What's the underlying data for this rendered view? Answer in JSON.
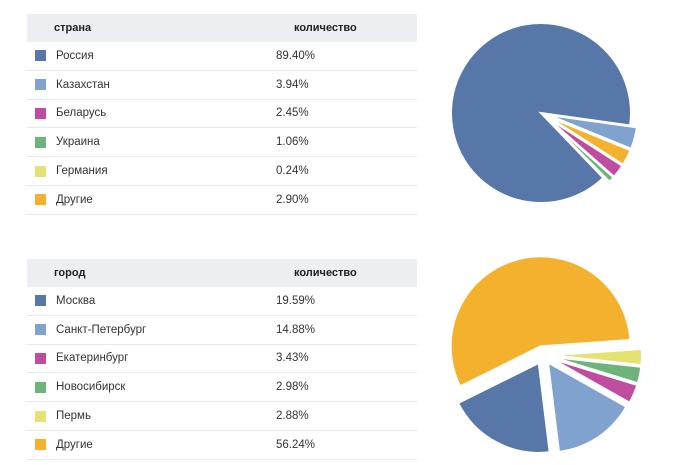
{
  "tables": [
    {
      "header": {
        "col1": "страна",
        "col2": "количество"
      },
      "rows": [
        {
          "name": "Россия",
          "value": "89.40%",
          "color": "#5677a8"
        },
        {
          "name": "Казахстан",
          "value": "3.94%",
          "color": "#80a2cf"
        },
        {
          "name": "Беларусь",
          "value": "2.45%",
          "color": "#bf4c9f"
        },
        {
          "name": "Украина",
          "value": "1.06%",
          "color": "#6db37a"
        },
        {
          "name": "Германия",
          "value": "0.24%",
          "color": "#e3e272"
        },
        {
          "name": "Другие",
          "value": "2.90%",
          "color": "#f4b12e"
        }
      ]
    },
    {
      "header": {
        "col1": "город",
        "col2": "количество"
      },
      "rows": [
        {
          "name": "Москва",
          "value": "19.59%",
          "color": "#5677a8"
        },
        {
          "name": "Санкт-Петербург",
          "value": "14.88%",
          "color": "#80a2cf"
        },
        {
          "name": "Екатеринбург",
          "value": "3.43%",
          "color": "#bf4c9f"
        },
        {
          "name": "Новосибирск",
          "value": "2.98%",
          "color": "#6db37a"
        },
        {
          "name": "Пермь",
          "value": "2.88%",
          "color": "#e3e272"
        },
        {
          "name": "Другие",
          "value": "56.24%",
          "color": "#f4b12e"
        }
      ]
    }
  ],
  "chart_data": [
    {
      "type": "pie",
      "categories": [
        "Россия",
        "Казахстан",
        "Беларусь",
        "Украина",
        "Германия",
        "Другие"
      ],
      "values": [
        89.4,
        3.94,
        2.45,
        1.06,
        0.24,
        2.9
      ],
      "colors": [
        "#5677a8",
        "#80a2cf",
        "#bf4c9f",
        "#6db37a",
        "#e3e272",
        "#f4b12e"
      ],
      "exploded_slices": [
        "Казахстан",
        "Беларусь",
        "Украина",
        "Германия",
        "Другие"
      ],
      "title": "",
      "legend": "none"
    },
    {
      "type": "pie",
      "categories": [
        "Москва",
        "Санкт-Петербург",
        "Екатеринбург",
        "Новосибирск",
        "Пермь",
        "Другие"
      ],
      "values": [
        19.59,
        14.88,
        3.43,
        2.98,
        2.88,
        56.24
      ],
      "colors": [
        "#5677a8",
        "#80a2cf",
        "#bf4c9f",
        "#6db37a",
        "#e3e272",
        "#f4b12e"
      ],
      "exploded_slices": [
        "Москва",
        "Санкт-Петербург",
        "Екатеринбург",
        "Новосибирск",
        "Пермь",
        "Другие"
      ],
      "title": "",
      "legend": "none"
    }
  ]
}
